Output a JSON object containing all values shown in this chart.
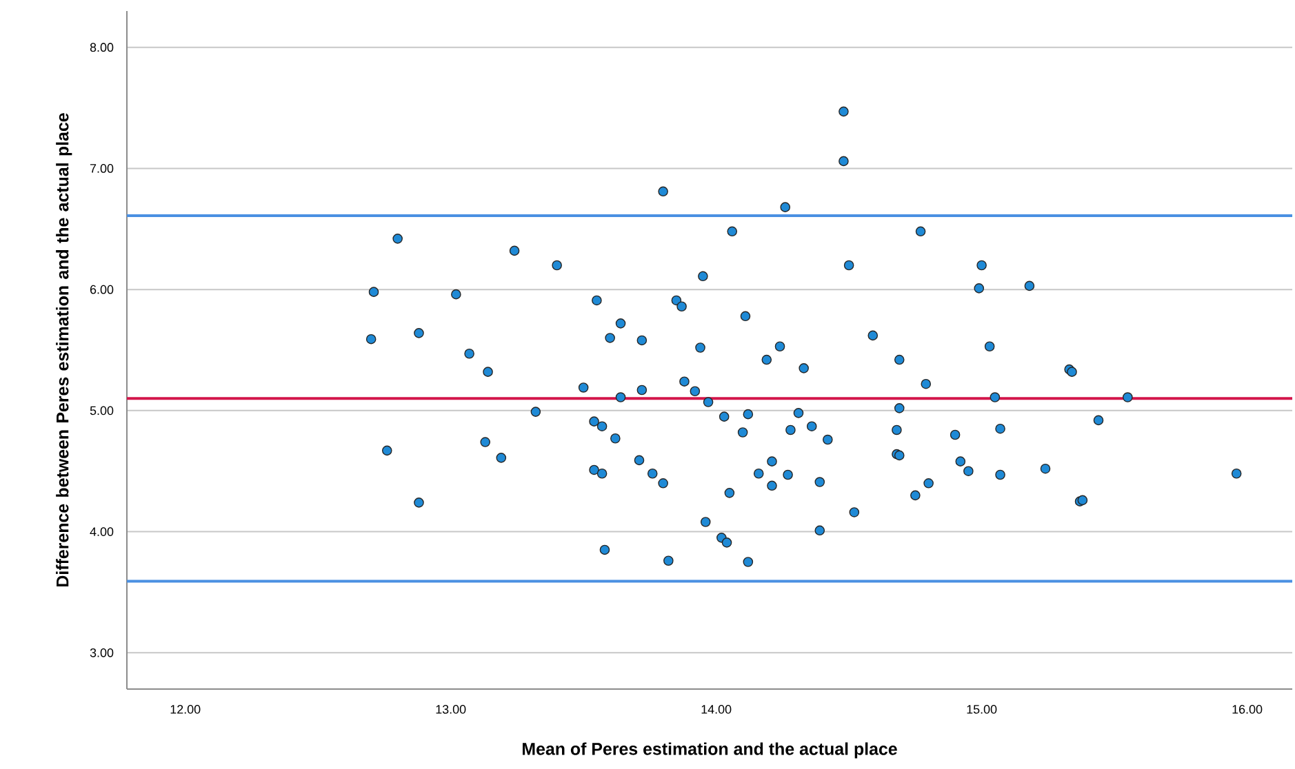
{
  "chart_data": {
    "type": "scatter",
    "xlabel": "Mean of Peres estimation and the actual place",
    "ylabel": "Difference between Peres estimation and the actual place",
    "xlim": [
      11.78,
      16.17
    ],
    "ylim": [
      2.7,
      8.3
    ],
    "xticks": [
      {
        "value": 12,
        "label": "12.00"
      },
      {
        "value": 13,
        "label": "13.00"
      },
      {
        "value": 14,
        "label": "14.00"
      },
      {
        "value": 15,
        "label": "15.00"
      },
      {
        "value": 16,
        "label": "16.00"
      }
    ],
    "yticks": [
      {
        "value": 3,
        "label": "3.00"
      },
      {
        "value": 4,
        "label": "4.00"
      },
      {
        "value": 5,
        "label": "5.00"
      },
      {
        "value": 6,
        "label": "6.00"
      },
      {
        "value": 7,
        "label": "7.00"
      },
      {
        "value": 8,
        "label": "8.00"
      }
    ],
    "grid": "y",
    "marker": "circle",
    "ref_lines": [
      {
        "axis": "y",
        "value": 6.61,
        "color": "#4a90e2"
      },
      {
        "axis": "y",
        "value": 5.1,
        "color": "#d3164b"
      },
      {
        "axis": "y",
        "value": 3.59,
        "color": "#4a90e2"
      }
    ],
    "series": [
      {
        "color": "#1f8ad6",
        "x": [
          13.8,
          12.8,
          13.24,
          13.4,
          12.71,
          13.02,
          13.95,
          13.55,
          13.85,
          13.87,
          12.7,
          12.88,
          13.64,
          13.6,
          13.72,
          13.94,
          13.07,
          13.14,
          13.5,
          13.64,
          13.72,
          13.88,
          13.92,
          13.97,
          13.32,
          14.48,
          14.48,
          14.26,
          14.06,
          14.77,
          14.5,
          15.0,
          14.99,
          15.18,
          14.11,
          14.59,
          14.19,
          14.24,
          14.33,
          14.69,
          15.03,
          14.79,
          15.33,
          15.34,
          15.05,
          15.55,
          14.69,
          13.54,
          13.57,
          13.62,
          12.76,
          13.13,
          13.19,
          13.71,
          13.54,
          13.57,
          13.76,
          13.8,
          12.88,
          13.96,
          13.58,
          13.82,
          14.03,
          14.12,
          14.31,
          14.1,
          14.28,
          14.36,
          14.42,
          14.68,
          14.9,
          15.07,
          15.44,
          14.21,
          14.16,
          14.27,
          14.21,
          14.39,
          14.68,
          14.69,
          14.92,
          14.95,
          15.07,
          15.24,
          15.37,
          15.38,
          15.96,
          14.05,
          14.75,
          14.8,
          14.52,
          14.02,
          14.04,
          14.39,
          14.12
        ],
        "values": [
          6.81,
          6.42,
          6.32,
          6.2,
          5.98,
          5.96,
          6.11,
          5.91,
          5.91,
          5.86,
          5.59,
          5.64,
          5.72,
          5.6,
          5.58,
          5.52,
          5.47,
          5.32,
          5.19,
          5.11,
          5.17,
          5.24,
          5.16,
          5.07,
          4.99,
          7.47,
          7.06,
          6.68,
          6.48,
          6.48,
          6.2,
          6.2,
          6.01,
          6.03,
          5.78,
          5.62,
          5.42,
          5.53,
          5.35,
          5.42,
          5.53,
          5.22,
          5.34,
          5.32,
          5.11,
          5.11,
          5.02,
          4.91,
          4.87,
          4.77,
          4.67,
          4.74,
          4.61,
          4.59,
          4.51,
          4.48,
          4.48,
          4.4,
          4.24,
          4.08,
          3.85,
          3.76,
          4.95,
          4.97,
          4.98,
          4.82,
          4.84,
          4.87,
          4.76,
          4.84,
          4.8,
          4.85,
          4.92,
          4.58,
          4.48,
          4.47,
          4.38,
          4.41,
          4.64,
          4.63,
          4.58,
          4.5,
          4.47,
          4.52,
          4.25,
          4.26,
          4.48,
          4.32,
          4.3,
          4.4,
          4.16,
          3.95,
          3.91,
          4.01,
          3.75
        ]
      }
    ]
  }
}
